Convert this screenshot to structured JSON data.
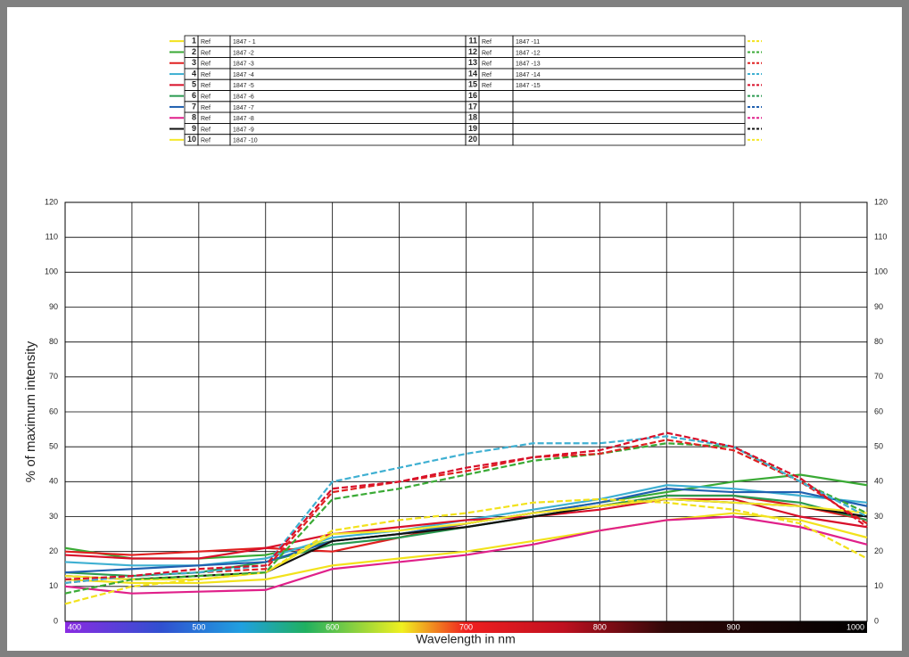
{
  "chart_data": {
    "type": "line",
    "y_label": "% of maximum intensity",
    "x_label": "Wavelength in nm",
    "x": [
      400,
      450,
      500,
      550,
      600,
      650,
      700,
      750,
      800,
      850,
      900,
      950,
      1000
    ],
    "xlim": [
      400,
      1000
    ],
    "xticks": [
      400,
      500,
      600,
      700,
      800,
      900,
      1000
    ],
    "xminor": [
      450,
      550,
      650,
      750,
      850,
      950
    ],
    "ylim": [
      0,
      120
    ],
    "yticks": [
      0,
      10,
      20,
      30,
      40,
      50,
      60,
      70,
      80,
      90,
      100,
      110,
      120
    ],
    "grid": true,
    "series": [
      {
        "number": 1,
        "ref": "Ref",
        "name": "1847 - 1",
        "color": "#f2e21c",
        "dashed": false,
        "values": [
          12,
          11,
          11,
          12,
          16,
          18,
          20,
          23,
          26,
          29,
          31,
          29,
          24
        ]
      },
      {
        "number": 2,
        "ref": "Ref",
        "name": "1847 -2",
        "color": "#3aaa35",
        "dashed": false,
        "values": [
          21,
          18,
          18,
          19,
          23,
          25,
          28,
          31,
          34,
          37,
          40,
          42,
          39
        ]
      },
      {
        "number": 3,
        "ref": "Ref",
        "name": "1847 -3",
        "color": "#e02020",
        "dashed": false,
        "values": [
          20,
          19,
          20,
          21,
          20,
          24,
          28,
          31,
          33,
          36,
          36,
          33,
          29
        ]
      },
      {
        "number": 4,
        "ref": "Ref",
        "name": "1847 -4",
        "color": "#3fb0d2",
        "dashed": false,
        "values": [
          17,
          16,
          16,
          18,
          24,
          26,
          29,
          32,
          35,
          39,
          38,
          36,
          34
        ]
      },
      {
        "number": 5,
        "ref": "Ref",
        "name": "1847 -5",
        "color": "#d8102a",
        "dashed": false,
        "values": [
          19,
          18,
          18,
          21,
          25,
          27,
          29,
          30,
          32,
          35,
          35,
          30,
          27
        ]
      },
      {
        "number": 6,
        "ref": "Ref",
        "name": "1847 -6",
        "color": "#2a9a50",
        "dashed": false,
        "values": [
          14,
          13,
          14,
          17,
          22,
          24,
          27,
          30,
          33,
          36,
          36,
          34,
          29
        ]
      },
      {
        "number": 7,
        "ref": "Ref",
        "name": "1847 -7",
        "color": "#2060b0",
        "dashed": false,
        "values": [
          14,
          15,
          16,
          17,
          23,
          25,
          28,
          31,
          34,
          38,
          37,
          37,
          33
        ]
      },
      {
        "number": 8,
        "ref": "Ref",
        "name": "1847 -8",
        "color": "#e0208a",
        "dashed": false,
        "values": [
          10,
          8,
          8.5,
          9,
          15,
          17,
          19,
          22,
          26,
          29,
          30,
          27,
          22
        ]
      },
      {
        "number": 9,
        "ref": "Ref",
        "name": "1847 -9",
        "color": "#111111",
        "dashed": false,
        "values": [
          13,
          12,
          13,
          14,
          23,
          25,
          27,
          30,
          33,
          35,
          34,
          33,
          30
        ]
      },
      {
        "number": 10,
        "ref": "Ref",
        "name": "1847 -10",
        "color": "#f5e82a",
        "dashed": false,
        "values": [
          13,
          12,
          12,
          14,
          25,
          26,
          28,
          31,
          33,
          35,
          34,
          33,
          31
        ]
      },
      {
        "number": 11,
        "ref": "Ref",
        "name": "1847 -11",
        "color": "#f2e21c",
        "dashed": true,
        "values": [
          5,
          10,
          12,
          14,
          26,
          29,
          31,
          34,
          35,
          34,
          32,
          28,
          18
        ]
      },
      {
        "number": 12,
        "ref": "Ref",
        "name": "1847 -12",
        "color": "#3aaa35",
        "dashed": true,
        "values": [
          8,
          12,
          13,
          14,
          35,
          38,
          42,
          46,
          48,
          51,
          50,
          40,
          31
        ]
      },
      {
        "number": 13,
        "ref": "Ref",
        "name": "1847 -13",
        "color": "#e02020",
        "dashed": true,
        "values": [
          11,
          13,
          14,
          15,
          37,
          40,
          43,
          47,
          48,
          52,
          49,
          40,
          28
        ]
      },
      {
        "number": 14,
        "ref": "Ref",
        "name": "1847 -14",
        "color": "#3fb0d2",
        "dashed": true,
        "values": [
          11,
          13,
          14,
          16,
          40,
          44,
          48,
          51,
          51,
          53,
          50,
          40,
          30
        ]
      },
      {
        "number": 15,
        "ref": "Ref",
        "name": "1847 -15",
        "color": "#d8102a",
        "dashed": true,
        "values": [
          12,
          13,
          15,
          16,
          38,
          40,
          44,
          47,
          49,
          54,
          50,
          41,
          27
        ]
      }
    ],
    "empty_slots": [
      {
        "number": 16,
        "color": "#2a9a50"
      },
      {
        "number": 17,
        "color": "#2060b0"
      },
      {
        "number": 18,
        "color": "#e0208a"
      },
      {
        "number": 19,
        "color": "#111111"
      },
      {
        "number": 20,
        "color": "#f5e82a"
      }
    ]
  }
}
